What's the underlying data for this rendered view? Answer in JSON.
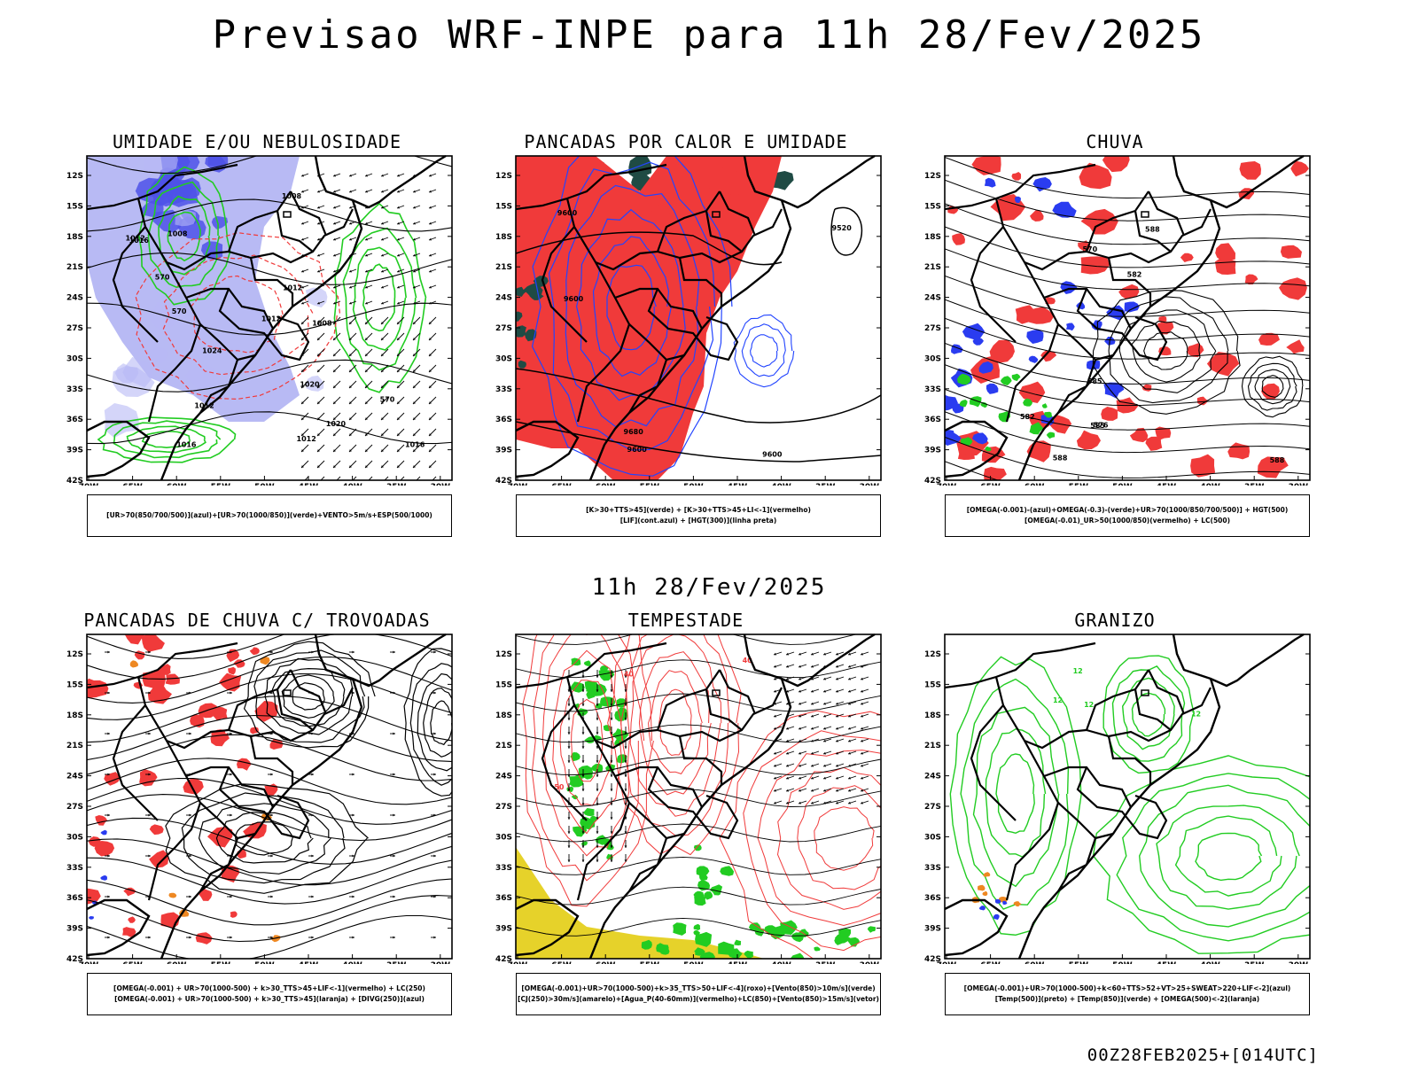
{
  "title": "Previsao WRF-INPE  para 11h 28/Fev/2025",
  "mid_time": "11h 28/Fev/2025",
  "footer": "00Z28FEB2025+[014UTC]",
  "axes": {
    "lat_labels": [
      "12S",
      "15S",
      "18S",
      "21S",
      "24S",
      "27S",
      "30S",
      "33S",
      "36S",
      "39S",
      "42S"
    ],
    "lon_labels": [
      "70W",
      "65W",
      "60W",
      "55W",
      "50W",
      "45W",
      "40W",
      "35W",
      "30W"
    ]
  },
  "colors": {
    "blue": "#3344ff",
    "green": "#22cc22",
    "red": "#f03a3a",
    "purple_fill": "#9a9cf0",
    "yellow": "#e6d22a",
    "orange": "#ee8822",
    "darkteal": "#1f4b44"
  },
  "panels": [
    {
      "id": "umidade",
      "title": "UMIDADE E/OU NEBULOSIDADE",
      "legend": [
        "[UR>70(850/700/500)](azul)+[UR>70(1000/850)](verde)+VENTO>5m/s+ESP(500/1000)"
      ],
      "contour_labels": [
        "1012",
        "1012",
        "1012",
        "1008",
        "1008",
        "1012",
        "1016",
        "1016",
        "1016",
        "1020",
        "1020",
        "1024",
        "1008",
        "1012",
        "570",
        "570",
        "570"
      ]
    },
    {
      "id": "pancadas-calor",
      "title": "PANCADAS POR CALOR E UMIDADE",
      "legend": [
        "[K>30+TTS>45](verde) + [K>30+TTS>45+LI<-1](vermelho)",
        "[LIF](cont.azul) + [HGT(300)](linha preta)"
      ],
      "contour_labels": [
        "9680",
        "9600",
        "9600",
        "9600",
        "9600",
        "9520"
      ]
    },
    {
      "id": "chuva",
      "title": "CHUVA",
      "legend": [
        "[OMEGA(-0.001)-(azul)+OMEGA(-0.3)-(verde)+UR>70(1000/850/700/500)] + HGT(500)",
        "[OMEGA(-0.01)_UR>50(1000/850)(vermelho) + LC(500)"
      ],
      "contour_labels": [
        "588",
        "588",
        "585",
        "582",
        "588",
        "585",
        "582",
        "576",
        "570"
      ]
    },
    {
      "id": "pancadas-trovoadas",
      "title": "PANCADAS DE CHUVA C/ TROVOADAS",
      "legend": [
        "[OMEGA(-0.001) + UR>70(1000-500) + k>30_TTS>45+LIF<-1](vermelho) + LC(250)",
        "[OMEGA(-0.001) + UR>70(1000-500) + k>30_TTS>45](laranja) + [DIVG(250)](azul)"
      ],
      "contour_labels": []
    },
    {
      "id": "tempestade",
      "title": "TEMPESTADE",
      "legend": [
        "[OMEGA(-0.001)+UR>70(1000-500)+k>35_TTS>50+LIF<-4](roxo)+[Vento(850)>10m/s](verde)",
        "[CJ(250)>30m/s](amarelo)+[Agua_P(40-60mm)](vermelho)+LC(850)+[Vento(850)>15m/s](vetor)"
      ],
      "contour_labels": [
        "40",
        "40",
        "50"
      ]
    },
    {
      "id": "granizo",
      "title": "GRANIZO",
      "legend": [
        "[OMEGA(-0.001)+UR>70(1000-500)+k<60+TTS>52+VT>25+SWEAT>220+LIF<-2](azul)",
        "[Temp(500)](preto) + [Temp(850)](verde) + [OMEGA(500)<-2](laranja)"
      ],
      "contour_labels": [
        "12",
        "12",
        "12",
        "12"
      ]
    }
  ]
}
